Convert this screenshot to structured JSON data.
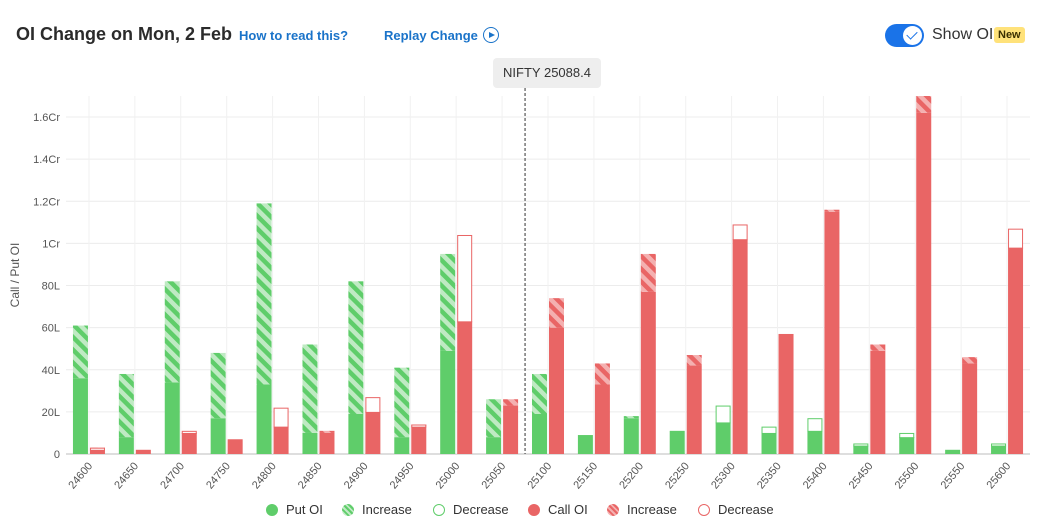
{
  "header": {
    "title": "OI Change on Mon, 2 Feb",
    "how_link": "How to read this?",
    "replay_link": "Replay Change",
    "toggle_label": "Show OI",
    "new_badge": "New"
  },
  "spot_label": "NIFTY 25088.4",
  "colors": {
    "put": "#5fcd6a",
    "put_light": "#bfeac3",
    "call": "#e96565",
    "call_light": "#f4b0b0"
  },
  "chart_data": {
    "type": "bar",
    "ylabel": "Call / Put OI",
    "ylim": [
      0,
      170
    ],
    "yticks": [
      0,
      20,
      40,
      60,
      80,
      100,
      120,
      140,
      160
    ],
    "ytick_labels": [
      "0",
      "20L",
      "40L",
      "60L",
      "80L",
      "1Cr",
      "1.2Cr",
      "1.4Cr",
      "1.6Cr"
    ],
    "spot_strike": 25100,
    "categories": [
      "24600",
      "24650",
      "24700",
      "24750",
      "24800",
      "24850",
      "24900",
      "24950",
      "25000",
      "25050",
      "25100",
      "25150",
      "25200",
      "25250",
      "25300",
      "25350",
      "25400",
      "25450",
      "25500",
      "25550",
      "25600"
    ],
    "series": [
      {
        "name": "Put OI",
        "values": [
          36,
          8,
          34,
          17,
          33,
          10,
          19,
          8,
          49,
          8,
          19,
          9,
          17,
          11,
          15,
          10,
          11,
          4,
          8,
          2,
          4
        ]
      },
      {
        "name": "Increase",
        "values": [
          25,
          30,
          48,
          31,
          86,
          42,
          63,
          33,
          46,
          18,
          19,
          0,
          1,
          0,
          0,
          0,
          0,
          0,
          0,
          0,
          0
        ]
      },
      {
        "name": "Decrease",
        "values": [
          0,
          0,
          0,
          0,
          0,
          0,
          0,
          0,
          0,
          0,
          0,
          0,
          0,
          0,
          8,
          3,
          6,
          1,
          2,
          0,
          1
        ]
      },
      {
        "name": "Call OI",
        "values": [
          2,
          2,
          10,
          7,
          13,
          10,
          20,
          13,
          63,
          23,
          60,
          33,
          77,
          42,
          102,
          57,
          115,
          49,
          162,
          43,
          98
        ]
      },
      {
        "name": "Increase",
        "values": [
          1,
          0,
          0,
          0,
          0,
          1,
          0,
          1,
          0,
          3,
          14,
          10,
          18,
          5,
          0,
          0,
          1,
          3,
          8,
          3,
          0
        ]
      },
      {
        "name": "Decrease",
        "values": [
          1,
          0,
          1,
          0,
          9,
          0,
          7,
          1,
          41,
          0,
          0,
          0,
          0,
          0,
          7,
          0,
          0,
          0,
          0,
          0,
          9
        ]
      }
    ]
  },
  "legend": [
    {
      "label": "Put OI",
      "style": "put-solid"
    },
    {
      "label": "Increase",
      "style": "put-stripe"
    },
    {
      "label": "Decrease",
      "style": "put-outline"
    },
    {
      "label": "Call OI",
      "style": "call-solid"
    },
    {
      "label": "Increase",
      "style": "call-stripe"
    },
    {
      "label": "Decrease",
      "style": "call-outline"
    }
  ]
}
